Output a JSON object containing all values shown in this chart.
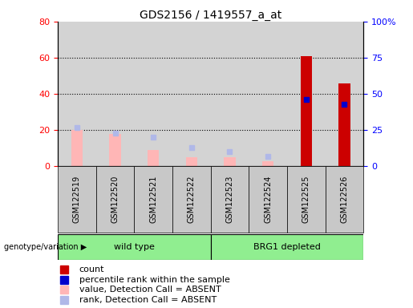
{
  "title": "GDS2156 / 1419557_a_at",
  "samples": [
    "GSM122519",
    "GSM122520",
    "GSM122521",
    "GSM122522",
    "GSM122523",
    "GSM122524",
    "GSM122525",
    "GSM122526"
  ],
  "count_values": [
    null,
    null,
    null,
    null,
    null,
    null,
    61,
    46
  ],
  "percentile_rank_values": [
    null,
    null,
    null,
    null,
    null,
    null,
    46,
    43
  ],
  "value_absent": [
    20,
    18,
    9,
    5,
    5,
    3,
    null,
    null
  ],
  "rank_absent": [
    27,
    23,
    20,
    13,
    10,
    7,
    null,
    null
  ],
  "left_ylim": [
    0,
    80
  ],
  "right_ylim": [
    0,
    100
  ],
  "left_yticks": [
    0,
    20,
    40,
    60,
    80
  ],
  "right_yticks": [
    0,
    25,
    50,
    75,
    100
  ],
  "right_yticklabels": [
    "0",
    "25",
    "50",
    "75",
    "100%"
  ],
  "count_color": "#cc0000",
  "percentile_rank_color": "#0000cc",
  "value_absent_color": "#ffb6b6",
  "rank_absent_color": "#b0b8e8",
  "plot_bg_color": "#d3d3d3",
  "sample_box_color": "#c8c8c8",
  "group_label": "genotype/variation",
  "group1_label": "wild type",
  "group2_label": "BRG1 depleted",
  "group_color": "#90ee90",
  "legend_entries": [
    {
      "label": "count",
      "color": "#cc0000"
    },
    {
      "label": "percentile rank within the sample",
      "color": "#0000cc"
    },
    {
      "label": "value, Detection Call = ABSENT",
      "color": "#ffb6b6"
    },
    {
      "label": "rank, Detection Call = ABSENT",
      "color": "#b0b8e8"
    }
  ],
  "title_fontsize": 10,
  "tick_fontsize": 8,
  "sample_fontsize": 7,
  "legend_fontsize": 8
}
